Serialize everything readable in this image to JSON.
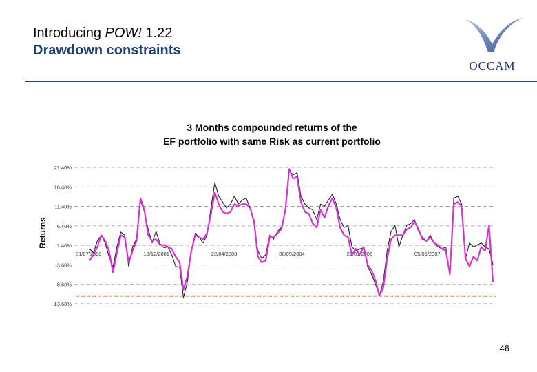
{
  "slide": {
    "title_plain": "Introducing ",
    "title_italic": "POW!",
    "title_version": " 1.22",
    "subtitle": "Drawdown constraints",
    "page_number": "46",
    "logo_text": "OCCAM"
  },
  "colors": {
    "accent": "#1f3f73",
    "current_series": "#222222",
    "ef_series": "#d633d6",
    "drawdown_line": "#e02020",
    "grid": "#909090"
  },
  "chart_data": {
    "type": "line",
    "title_line1": "3 Months compounded returns of the",
    "title_line2": "EF portfolio with same Risk as current portfolio",
    "ylabel": "Returns",
    "xlabel": "",
    "ylim": [
      -13.6,
      21.4
    ],
    "y_ticks": [
      "21.40%",
      "16.40%",
      "11.40%",
      "6.40%",
      "1.40%",
      "-3.60%",
      "-8.60%",
      "-13.60%"
    ],
    "y_tick_values": [
      21.4,
      16.4,
      11.4,
      6.4,
      1.4,
      -3.6,
      -8.6,
      -13.6
    ],
    "x_ticks": [
      "31/07/2000",
      "18/12/2001",
      "22/04/2003",
      "08/09/2004",
      "21/01/2006",
      "05/06/2007"
    ],
    "drawdown_limit": -11.6,
    "legend": "none",
    "series": [
      {
        "name": "Current portfolio",
        "values": [
          0.5,
          -0.5,
          2.5,
          4.0,
          2.0,
          -1.5,
          -4.2,
          1.0,
          4.8,
          4.0,
          -4.0,
          1.0,
          3.0,
          13.0,
          10.0,
          5.5,
          2.0,
          5.0,
          1.8,
          0.8,
          1.0,
          -1.0,
          -4.0,
          -4.2,
          -12.0,
          -8.0,
          0.0,
          4.5,
          3.5,
          2.0,
          4.0,
          11.0,
          17.5,
          14.0,
          12.5,
          11.0,
          12.0,
          14.0,
          12.0,
          13.0,
          13.5,
          11.0,
          7.0,
          0.0,
          -2.0,
          -1.0,
          4.0,
          3.0,
          5.0,
          6.0,
          10.0,
          20.5,
          19.5,
          20.0,
          14.0,
          12.0,
          11.0,
          10.5,
          8.0,
          12.0,
          11.5,
          13.0,
          14.5,
          12.0,
          8.0,
          6.0,
          6.5,
          1.0,
          0.0,
          0.5,
          0.8,
          -4.0,
          -6.0,
          -8.5,
          -11.5,
          -8.0,
          0.0,
          5.0,
          6.5,
          1.0,
          4.0,
          6.5,
          7.0,
          8.0,
          5.0,
          3.5,
          2.5,
          4.0,
          2.0,
          1.0,
          0.5,
          1.0,
          -6.5,
          13.5,
          14.0,
          12.0,
          -2.0,
          2.0,
          1.0,
          1.5,
          2.0,
          1.0,
          0.5,
          -3.5
        ]
      },
      {
        "name": "EF portfolio",
        "values": [
          -2.5,
          -1.0,
          1.0,
          4.0,
          2.5,
          0.0,
          -5.5,
          -0.5,
          4.0,
          3.5,
          -3.0,
          0.0,
          2.5,
          13.5,
          10.5,
          4.0,
          2.5,
          3.0,
          1.5,
          1.5,
          1.0,
          0.5,
          -1.5,
          -3.0,
          -10.0,
          -6.5,
          0.0,
          4.0,
          3.5,
          3.0,
          4.5,
          9.5,
          15.0,
          12.0,
          10.0,
          9.5,
          10.0,
          12.0,
          11.5,
          12.0,
          12.0,
          11.0,
          7.5,
          -1.5,
          -3.0,
          -2.5,
          3.5,
          3.5,
          4.5,
          5.5,
          10.5,
          21.0,
          18.5,
          19.0,
          12.5,
          10.0,
          9.5,
          7.0,
          6.0,
          10.5,
          8.5,
          11.5,
          13.5,
          11.0,
          6.0,
          4.0,
          3.5,
          -1.0,
          0.5,
          -1.0,
          1.0,
          -3.5,
          -5.0,
          -7.5,
          -11.5,
          -9.5,
          -2.0,
          3.0,
          4.0,
          4.0,
          4.0,
          5.5,
          6.0,
          7.5,
          5.5,
          3.0,
          2.5,
          3.5,
          2.0,
          1.5,
          0.5,
          0.0,
          -6.0,
          12.0,
          12.5,
          11.5,
          -2.0,
          -4.0,
          -1.5,
          -2.5,
          1.0,
          0.0,
          6.5,
          -8.0
        ]
      }
    ]
  }
}
